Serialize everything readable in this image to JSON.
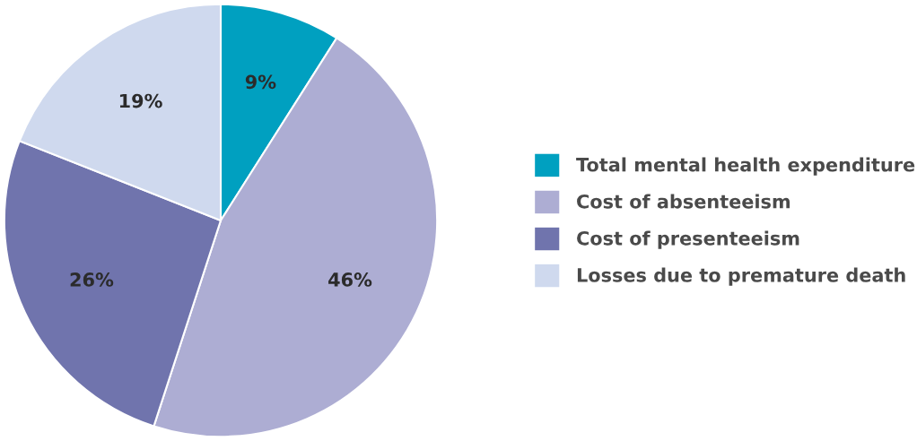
{
  "chart_data": {
    "type": "pie",
    "categories": [
      "Total mental health expenditure",
      "Cost of absenteeism",
      "Cost of presenteeism",
      "Losses due to premature death"
    ],
    "values": [
      9,
      46,
      26,
      19
    ],
    "colors": [
      "#00a0c0",
      "#adadd3",
      "#7074ad",
      "#cfd9ee"
    ],
    "value_labels": [
      "9%",
      "46%",
      "26%",
      "19%"
    ],
    "legend": "right"
  }
}
